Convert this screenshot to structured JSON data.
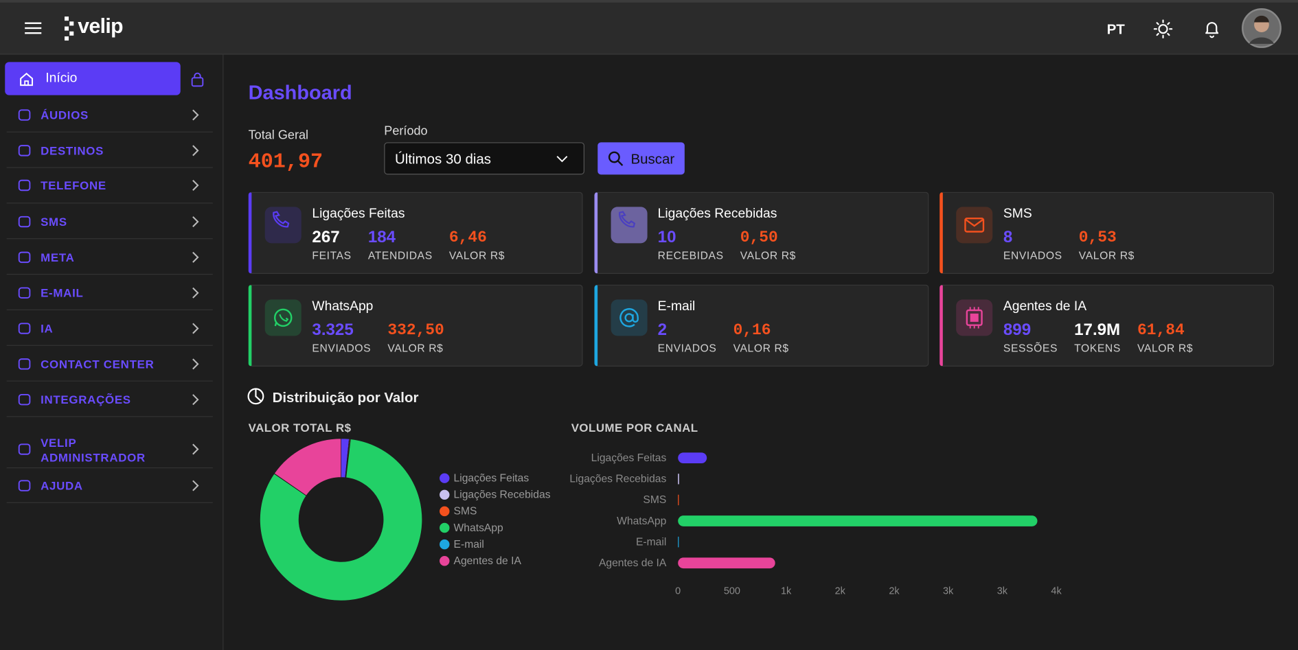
{
  "header": {
    "logo": "velip",
    "language": "PT"
  },
  "sidebar": {
    "items": [
      "Início",
      "ÁUDIOS",
      "DESTINOS",
      "TELEFONE",
      "SMS",
      "META",
      "E-MAIL",
      "IA",
      "CONTACT CENTER",
      "INTEGRAÇÕES",
      "VELIP ADMINISTRADOR",
      "AJUDA"
    ]
  },
  "dashboard": {
    "title": "Dashboard",
    "total_label": "Total Geral",
    "total_value": "401,97",
    "period_label": "Período",
    "period_value": "Últimos 30 dias",
    "search_button": "Buscar",
    "section_title": "Distribuição por Valor"
  },
  "cards": [
    {
      "title": "Ligações Feitas",
      "accent": "#5b3cf5",
      "stats": [
        {
          "value": "267",
          "label": "FEITAS",
          "color": "#ffffff"
        },
        {
          "value": "184",
          "label": "ATENDIDAS",
          "color": "#6a4cff"
        },
        {
          "value": "6,46",
          "label": "VALOR R$",
          "color": "#f4511e"
        }
      ]
    },
    {
      "title": "Ligações Recebidas",
      "accent": "#9b8cf0",
      "stats": [
        {
          "value": "10",
          "label": "RECEBIDAS",
          "color": "#6a4cff"
        },
        {
          "value": "0,50",
          "label": "VALOR R$",
          "color": "#f4511e"
        }
      ]
    },
    {
      "title": "SMS",
      "accent": "#f4511e",
      "stats": [
        {
          "value": "8",
          "label": "ENVIADOS",
          "color": "#6a4cff"
        },
        {
          "value": "0,53",
          "label": "VALOR R$",
          "color": "#f4511e"
        }
      ]
    },
    {
      "title": "WhatsApp",
      "accent": "#22d067",
      "stats": [
        {
          "value": "3.325",
          "label": "ENVIADOS",
          "color": "#6a4cff"
        },
        {
          "value": "332,50",
          "label": "VALOR R$",
          "color": "#f4511e"
        }
      ]
    },
    {
      "title": "E-mail",
      "accent": "#1ea7e1",
      "stats": [
        {
          "value": "2",
          "label": "ENVIADOS",
          "color": "#6a4cff"
        },
        {
          "value": "0,16",
          "label": "VALOR R$",
          "color": "#f4511e"
        }
      ]
    },
    {
      "title": "Agentes de IA",
      "accent": "#e8449a",
      "stats": [
        {
          "value": "899",
          "label": "SESSÕES",
          "color": "#6a4cff"
        },
        {
          "value": "17.9M",
          "label": "TOKENS",
          "color": "#ffffff"
        },
        {
          "value": "61,84",
          "label": "VALOR R$",
          "color": "#f4511e"
        }
      ]
    }
  ],
  "chart_data": [
    {
      "type": "pie",
      "title": "VALOR TOTAL R$",
      "categories": [
        "Ligações Feitas",
        "Ligações Recebidas",
        "SMS",
        "WhatsApp",
        "E-mail",
        "Agentes de IA"
      ],
      "values": [
        6.46,
        0.5,
        0.53,
        332.5,
        0.16,
        61.84
      ],
      "colors": [
        "#5b3cf5",
        "#c8c0f0",
        "#f4511e",
        "#22d067",
        "#1ea7e1",
        "#e8449a"
      ],
      "legend": "right"
    },
    {
      "type": "bar",
      "orientation": "horizontal",
      "title": "VOLUME POR CANAL",
      "categories": [
        "Ligações Feitas",
        "Ligações Recebidas",
        "SMS",
        "WhatsApp",
        "E-mail",
        "Agentes de IA"
      ],
      "values": [
        267,
        10,
        8,
        3325,
        2,
        899
      ],
      "colors": [
        "#5b3cf5",
        "#c8c0f0",
        "#f4511e",
        "#22d067",
        "#1ea7e1",
        "#e8449a"
      ],
      "xlim": [
        0,
        3500
      ],
      "xticks": [
        0,
        500,
        {
          "value": 1000,
          "label": "1k"
        },
        {
          "value": 1500,
          "label": "2k"
        },
        {
          "value": 2000,
          "label": "2k"
        },
        {
          "value": 2500,
          "label": "3k"
        },
        {
          "value": 3000,
          "label": "3k"
        },
        {
          "value": 3500,
          "label": "4k"
        }
      ]
    }
  ]
}
